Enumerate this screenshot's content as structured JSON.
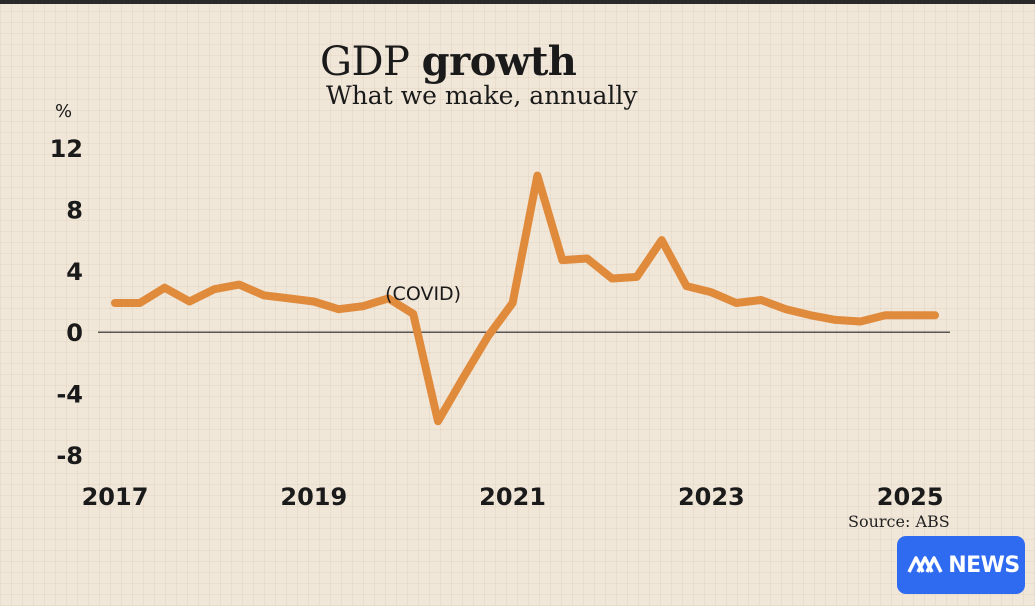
{
  "header": {
    "title_regular": "GDP",
    "title_bold": "growth",
    "subtitle": "What we make, annually"
  },
  "source": "Source: ABS",
  "badge": {
    "text": "NEWS",
    "logo": "abc-logo-icon"
  },
  "colors": {
    "background": "#f1e7d9",
    "line": "#e08a3c",
    "axis": "#555555",
    "badge": "#2f6bf0"
  },
  "chart_data": {
    "type": "line",
    "title": "GDP growth",
    "subtitle": "What we make, annually",
    "ylabel": "%",
    "xlabel": "",
    "ylim": [
      -8,
      12
    ],
    "xlim": [
      2017.0,
      2025.5
    ],
    "yticks": [
      12,
      8,
      4,
      0,
      -4,
      -8
    ],
    "ytick_labels": [
      "12",
      "8",
      "4",
      "0",
      "-4",
      "-8"
    ],
    "xticks": [
      2017,
      2019,
      2021,
      2023,
      2025
    ],
    "xtick_labels": [
      "2017",
      "2019",
      "2021",
      "2023",
      "2025"
    ],
    "zero_line": true,
    "series": [
      {
        "name": "GDP growth",
        "x": [
          2017.0,
          2017.25,
          2017.5,
          2017.75,
          2018.0,
          2018.25,
          2018.5,
          2018.75,
          2019.0,
          2019.25,
          2019.5,
          2019.75,
          2020.0,
          2020.25,
          2020.5,
          2020.75,
          2021.0,
          2021.25,
          2021.5,
          2021.75,
          2022.0,
          2022.25,
          2022.5,
          2022.75,
          2023.0,
          2023.25,
          2023.5,
          2023.75,
          2024.0,
          2024.25,
          2024.5,
          2024.75,
          2025.0,
          2025.25
        ],
        "values": [
          1.9,
          1.9,
          2.9,
          2.0,
          2.8,
          3.1,
          2.4,
          2.2,
          2.0,
          1.5,
          1.7,
          2.2,
          1.2,
          -5.8,
          -3.0,
          -0.3,
          1.9,
          10.2,
          4.7,
          4.8,
          3.5,
          3.6,
          6.0,
          3.0,
          2.6,
          1.9,
          2.1,
          1.5,
          1.1,
          0.8,
          0.7,
          1.1,
          1.1,
          1.1
        ]
      }
    ],
    "annotations": [
      {
        "text": "(COVID)",
        "x": 2020.1,
        "y": 2.5
      }
    ]
  }
}
